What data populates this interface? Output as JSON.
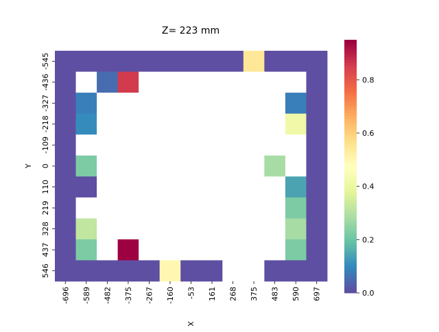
{
  "chart_data": {
    "type": "heatmap",
    "title": "Z= 223 mm",
    "xlabel": "X",
    "ylabel": "Y",
    "x_categories": [
      "-696",
      "-589",
      "-482",
      "-375",
      "-267",
      "-160",
      "-53",
      "161",
      "268",
      "375",
      "483",
      "590",
      "697"
    ],
    "y_categories": [
      "-545",
      "-436",
      "-327",
      "-218",
      "-109",
      "0",
      "110",
      "219",
      "328",
      "437",
      "546"
    ],
    "values": [
      [
        0.0,
        0.0,
        0.0,
        0.0,
        0.0,
        0.0,
        0.0,
        0.0,
        0.0,
        0.55,
        0.0,
        0.0,
        0.0
      ],
      [
        0.0,
        null,
        0.05,
        0.86,
        null,
        null,
        null,
        null,
        null,
        null,
        null,
        null,
        0.0
      ],
      [
        0.0,
        0.08,
        null,
        null,
        null,
        null,
        null,
        null,
        null,
        null,
        null,
        0.08,
        0.0
      ],
      [
        0.0,
        0.1,
        null,
        null,
        null,
        null,
        null,
        null,
        null,
        null,
        null,
        0.42,
        0.0
      ],
      [
        0.0,
        null,
        null,
        null,
        null,
        null,
        null,
        null,
        null,
        null,
        null,
        null,
        0.0
      ],
      [
        0.0,
        0.22,
        null,
        null,
        null,
        null,
        null,
        null,
        null,
        null,
        0.28,
        null,
        0.0
      ],
      [
        0.0,
        0.0,
        null,
        null,
        null,
        null,
        null,
        null,
        null,
        null,
        null,
        0.14,
        0.0
      ],
      [
        0.0,
        null,
        null,
        null,
        null,
        null,
        null,
        null,
        null,
        null,
        null,
        0.22,
        0.0
      ],
      [
        0.0,
        0.32,
        null,
        null,
        null,
        null,
        null,
        null,
        null,
        null,
        null,
        0.28,
        0.0
      ],
      [
        0.0,
        0.22,
        null,
        0.95,
        null,
        null,
        null,
        null,
        null,
        null,
        null,
        0.22,
        0.0
      ],
      [
        0.0,
        0.0,
        0.0,
        0.0,
        0.0,
        0.5,
        0.0,
        0.0,
        null,
        null,
        0.0,
        0.0,
        0.0
      ]
    ],
    "colormap": "Spectral_r",
    "colorbar": {
      "min": 0.0,
      "max": 0.95,
      "ticks": [
        "0.0",
        "0.2",
        "0.4",
        "0.6",
        "0.8"
      ]
    },
    "missing_color": "#ffffff"
  }
}
